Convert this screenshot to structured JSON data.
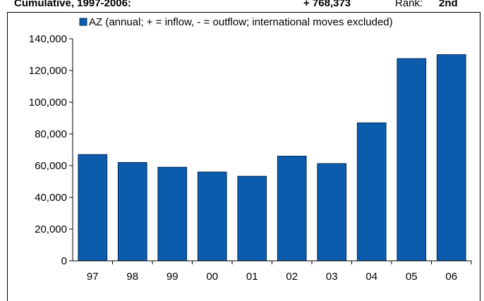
{
  "header": {
    "cumulative_label": "Cumulative, 1997-2006:",
    "cumulative_value": "+ 768,373",
    "rank_label": "Rank:",
    "rank_value": "2nd"
  },
  "chart_data": {
    "type": "bar",
    "categories": [
      "97",
      "98",
      "99",
      "00",
      "01",
      "02",
      "03",
      "04",
      "05",
      "06"
    ],
    "series": [
      {
        "name": "AZ (annual; + = inflow, - = outflow; international moves excluded)",
        "color": "#0b5cad",
        "values": [
          67000,
          62000,
          59000,
          56000,
          53300,
          66000,
          61300,
          87000,
          127500,
          130000
        ]
      }
    ],
    "ylim": [
      0,
      140000
    ],
    "yticks": [
      {
        "value": 0,
        "label": "0"
      },
      {
        "value": 20000,
        "label": "20,000"
      },
      {
        "value": 40000,
        "label": "40,000"
      },
      {
        "value": 60000,
        "label": "60,000"
      },
      {
        "value": 80000,
        "label": "80,000"
      },
      {
        "value": 100000,
        "label": "100,000"
      },
      {
        "value": 120000,
        "label": "120,000"
      },
      {
        "value": 140000,
        "label": "140,000"
      }
    ],
    "legend": "top"
  }
}
